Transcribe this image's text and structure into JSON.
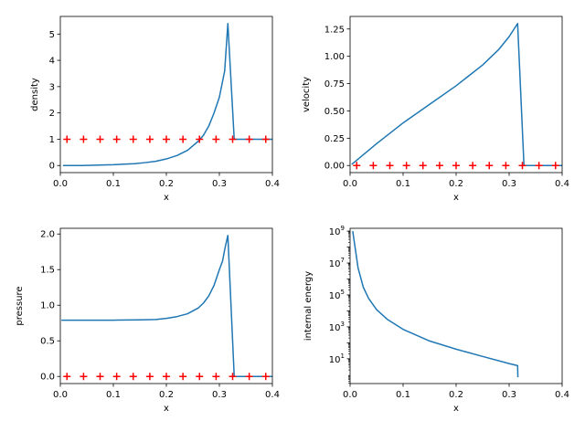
{
  "chart_data": [
    {
      "type": "line",
      "xlabel": "x",
      "ylabel": "density",
      "xlim": [
        0,
        0.4
      ],
      "ylim": [
        -0.27,
        5.67
      ],
      "yscale": "linear",
      "xticks": [
        0.0,
        0.1,
        0.2,
        0.3,
        0.4
      ],
      "xtick_labels": [
        "0.0",
        "0.1",
        "0.2",
        "0.3",
        "0.4"
      ],
      "yticks": [
        0,
        1,
        2,
        3,
        4,
        5
      ],
      "ytick_labels": [
        "0",
        "1",
        "2",
        "3",
        "4",
        "5"
      ],
      "series": [
        {
          "style": "line",
          "color": "#1f77b4",
          "x": [
            0.005,
            0.02,
            0.04,
            0.06,
            0.08,
            0.1,
            0.12,
            0.14,
            0.16,
            0.18,
            0.2,
            0.22,
            0.24,
            0.26,
            0.27,
            0.28,
            0.29,
            0.3,
            0.305,
            0.31,
            0.316,
            0.328,
            0.34,
            0.36,
            0.38,
            0.4
          ],
          "y": [
            0.0,
            0.0,
            0.0,
            0.01,
            0.02,
            0.03,
            0.05,
            0.07,
            0.11,
            0.16,
            0.25,
            0.38,
            0.58,
            0.92,
            1.15,
            1.5,
            2.0,
            2.6,
            3.1,
            3.6,
            5.4,
            1.0,
            1.0,
            1.0,
            1.0,
            1.0
          ]
        },
        {
          "style": "marker",
          "marker": "+",
          "color": "#ff0000",
          "x": [
            0.0125,
            0.0438,
            0.075,
            0.1063,
            0.1375,
            0.1688,
            0.2,
            0.2313,
            0.2625,
            0.2938,
            0.325,
            0.3563,
            0.3875
          ],
          "y": [
            1,
            1,
            1,
            1,
            1,
            1,
            1,
            1,
            1,
            1,
            1,
            1,
            1
          ]
        }
      ]
    },
    {
      "type": "line",
      "xlabel": "x",
      "ylabel": "velocity",
      "xlim": [
        0,
        0.4
      ],
      "ylim": [
        -0.065,
        1.365
      ],
      "yscale": "linear",
      "xticks": [
        0.0,
        0.1,
        0.2,
        0.3,
        0.4
      ],
      "xtick_labels": [
        "0.0",
        "0.1",
        "0.2",
        "0.3",
        "0.4"
      ],
      "yticks": [
        0.0,
        0.25,
        0.5,
        0.75,
        1.0,
        1.25
      ],
      "ytick_labels": [
        "0.00",
        "0.25",
        "0.50",
        "0.75",
        "1.00",
        "1.25"
      ],
      "series": [
        {
          "style": "line",
          "color": "#1f77b4",
          "x": [
            0.003,
            0.05,
            0.1,
            0.15,
            0.2,
            0.25,
            0.28,
            0.3,
            0.316,
            0.328,
            0.34,
            0.36,
            0.38,
            0.4
          ],
          "y": [
            0.01,
            0.2,
            0.39,
            0.56,
            0.73,
            0.92,
            1.06,
            1.18,
            1.3,
            0.0,
            0.0,
            0.0,
            0.0,
            0.0
          ]
        },
        {
          "style": "marker",
          "marker": "+",
          "color": "#ff0000",
          "x": [
            0.0125,
            0.0438,
            0.075,
            0.1063,
            0.1375,
            0.1688,
            0.2,
            0.2313,
            0.2625,
            0.2938,
            0.325,
            0.3563,
            0.3875
          ],
          "y": [
            0,
            0,
            0,
            0,
            0,
            0,
            0,
            0,
            0,
            0,
            0,
            0,
            0
          ]
        }
      ]
    },
    {
      "type": "line",
      "xlabel": "x",
      "ylabel": "pressure",
      "xlim": [
        0,
        0.4
      ],
      "ylim": [
        -0.1,
        2.08
      ],
      "yscale": "linear",
      "xticks": [
        0.0,
        0.1,
        0.2,
        0.3,
        0.4
      ],
      "xtick_labels": [
        "0.0",
        "0.1",
        "0.2",
        "0.3",
        "0.4"
      ],
      "yticks": [
        0.0,
        0.5,
        1.0,
        1.5,
        2.0
      ],
      "ytick_labels": [
        "0.0",
        "0.5",
        "1.0",
        "1.5",
        "2.0"
      ],
      "series": [
        {
          "style": "line",
          "color": "#1f77b4",
          "x": [
            0.002,
            0.05,
            0.1,
            0.15,
            0.18,
            0.2,
            0.22,
            0.24,
            0.26,
            0.27,
            0.28,
            0.29,
            0.3,
            0.306,
            0.31,
            0.316,
            0.328,
            0.34,
            0.36,
            0.38,
            0.4
          ],
          "y": [
            0.79,
            0.79,
            0.79,
            0.795,
            0.8,
            0.815,
            0.84,
            0.88,
            0.96,
            1.03,
            1.13,
            1.28,
            1.5,
            1.62,
            1.78,
            1.98,
            0.0,
            0.0,
            0.0,
            0.0,
            0.0
          ]
        },
        {
          "style": "marker",
          "marker": "+",
          "color": "#ff0000",
          "x": [
            0.0125,
            0.0438,
            0.075,
            0.1063,
            0.1375,
            0.1688,
            0.2,
            0.2313,
            0.2625,
            0.2938,
            0.325,
            0.3563,
            0.3875
          ],
          "y": [
            0,
            0,
            0,
            0,
            0,
            0,
            0,
            0,
            0,
            0,
            0,
            0,
            0
          ]
        }
      ]
    },
    {
      "type": "line",
      "xlabel": "x",
      "ylabel": "internal energy",
      "xlim": [
        0,
        0.4
      ],
      "ylim": [
        0.28,
        1500000000.0
      ],
      "yscale": "log",
      "xticks": [
        0.0,
        0.1,
        0.2,
        0.3,
        0.4
      ],
      "xtick_labels": [
        "0.0",
        "0.1",
        "0.2",
        "0.3",
        "0.4"
      ],
      "yticks": [
        10,
        1000,
        100000,
        10000000,
        1000000000
      ],
      "ytick_labels": [
        {
          "base": "10",
          "exp": "1"
        },
        {
          "base": "10",
          "exp": "3"
        },
        {
          "base": "10",
          "exp": "5"
        },
        {
          "base": "10",
          "exp": "7"
        },
        {
          "base": "10",
          "exp": "9"
        }
      ],
      "series": [
        {
          "style": "line",
          "color": "#1f77b4",
          "x": [
            0.005,
            0.015,
            0.025,
            0.035,
            0.05,
            0.07,
            0.1,
            0.15,
            0.2,
            0.25,
            0.3,
            0.316,
            0.3165
          ],
          "y": [
            1000000000.0,
            5000000.0,
            300000.0,
            60000.0,
            12000.0,
            3000.0,
            700,
            130,
            40,
            14,
            5,
            3.7,
            0.7
          ]
        }
      ]
    }
  ]
}
